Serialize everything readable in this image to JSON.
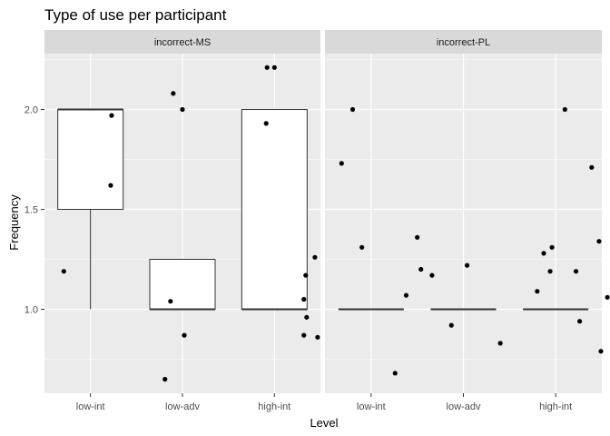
{
  "chart_data": {
    "type": "boxplot",
    "title": "Type of use per participant",
    "xlabel": "Level",
    "ylabel": "Frequency",
    "categories": [
      "low-int",
      "low-adv",
      "high-int"
    ],
    "ylim": [
      0.62,
      2.27
    ],
    "yticks": [
      1.0,
      1.5,
      2.0
    ],
    "ytick_labels": [
      "1.0",
      "1.5",
      "2.0"
    ],
    "grid": true,
    "colors": {
      "panel_bg": "#ebebeb",
      "strip_bg": "#d9d9d9",
      "grid_major": "#ffffff",
      "point": "#000000",
      "box_fill": "#ffffff",
      "box_line": "#333333"
    },
    "panels": [
      {
        "label": "incorrect-MS",
        "boxes": [
          {
            "category": "low-int",
            "min": 1.0,
            "q1": 1.5,
            "median": 2.0,
            "q3": 2.0,
            "max": 2.0
          },
          {
            "category": "low-adv",
            "min": 1.0,
            "q1": 1.0,
            "median": 1.0,
            "q3": 1.25,
            "max": 1.25
          },
          {
            "category": "high-int",
            "min": 1.0,
            "q1": 1.0,
            "median": 1.0,
            "q3": 2.0,
            "max": 2.0
          }
        ],
        "points": [
          {
            "category": "low-int",
            "offset": -0.29,
            "y": 1.19
          },
          {
            "category": "low-int",
            "offset": 0.23,
            "y": 1.97
          },
          {
            "category": "low-int",
            "offset": 0.22,
            "y": 1.62
          },
          {
            "category": "low-adv",
            "offset": -0.1,
            "y": 2.08
          },
          {
            "category": "low-adv",
            "offset": 0.0,
            "y": 2.0
          },
          {
            "category": "low-adv",
            "offset": -0.13,
            "y": 1.04
          },
          {
            "category": "low-adv",
            "offset": 0.02,
            "y": 0.87
          },
          {
            "category": "low-adv",
            "offset": -0.19,
            "y": 0.65
          },
          {
            "category": "high-int",
            "offset": -0.08,
            "y": 2.21
          },
          {
            "category": "high-int",
            "offset": 0.0,
            "y": 2.21
          },
          {
            "category": "high-int",
            "offset": -0.09,
            "y": 1.93
          },
          {
            "category": "high-int",
            "offset": 0.44,
            "y": 1.26
          },
          {
            "category": "high-int",
            "offset": 0.34,
            "y": 1.17
          },
          {
            "category": "high-int",
            "offset": 0.32,
            "y": 1.05
          },
          {
            "category": "high-int",
            "offset": 0.35,
            "y": 0.96
          },
          {
            "category": "high-int",
            "offset": 0.32,
            "y": 0.87
          }
        ]
      },
      {
        "label": "incorrect-PL",
        "boxes": [
          {
            "category": "low-int",
            "min": 1.0,
            "q1": 1.0,
            "median": 1.0,
            "q3": 1.0,
            "max": 1.0
          },
          {
            "category": "low-adv",
            "min": 1.0,
            "q1": 1.0,
            "median": 1.0,
            "q3": 1.0,
            "max": 1.0
          },
          {
            "category": "high-int",
            "min": 1.0,
            "q1": 1.0,
            "median": 1.0,
            "q3": 1.0,
            "max": 1.0
          }
        ],
        "points": [
          {
            "category": "low-int",
            "offset": -0.2,
            "y": 2.0
          },
          {
            "category": "low-int",
            "offset": -0.32,
            "y": 1.73
          },
          {
            "category": "low-int",
            "offset": -0.1,
            "y": 1.31
          },
          {
            "category": "low-int",
            "offset": 0.38,
            "y": 1.07
          },
          {
            "category": "low-int",
            "offset": -0.58,
            "y": 0.86
          },
          {
            "category": "low-int",
            "offset": 0.26,
            "y": 0.68
          },
          {
            "category": "low-adv",
            "offset": -0.5,
            "y": 1.36
          },
          {
            "category": "low-adv",
            "offset": -0.46,
            "y": 1.2
          },
          {
            "category": "low-adv",
            "offset": -0.34,
            "y": 1.17
          },
          {
            "category": "low-adv",
            "offset": 0.04,
            "y": 1.22
          },
          {
            "category": "low-adv",
            "offset": -0.13,
            "y": 0.92
          },
          {
            "category": "low-adv",
            "offset": 0.4,
            "y": 0.83
          },
          {
            "category": "high-int",
            "offset": 0.1,
            "y": 2.0
          },
          {
            "category": "high-int",
            "offset": 0.39,
            "y": 1.71
          },
          {
            "category": "high-int",
            "offset": 0.47,
            "y": 1.34
          },
          {
            "category": "high-int",
            "offset": -0.13,
            "y": 1.28
          },
          {
            "category": "high-int",
            "offset": -0.04,
            "y": 1.31
          },
          {
            "category": "high-int",
            "offset": -0.06,
            "y": 1.19
          },
          {
            "category": "high-int",
            "offset": 0.22,
            "y": 1.19
          },
          {
            "category": "high-int",
            "offset": -0.2,
            "y": 1.09
          },
          {
            "category": "high-int",
            "offset": 0.56,
            "y": 1.06
          },
          {
            "category": "high-int",
            "offset": 0.26,
            "y": 0.94
          },
          {
            "category": "high-int",
            "offset": 0.49,
            "y": 0.79
          }
        ]
      }
    ]
  }
}
